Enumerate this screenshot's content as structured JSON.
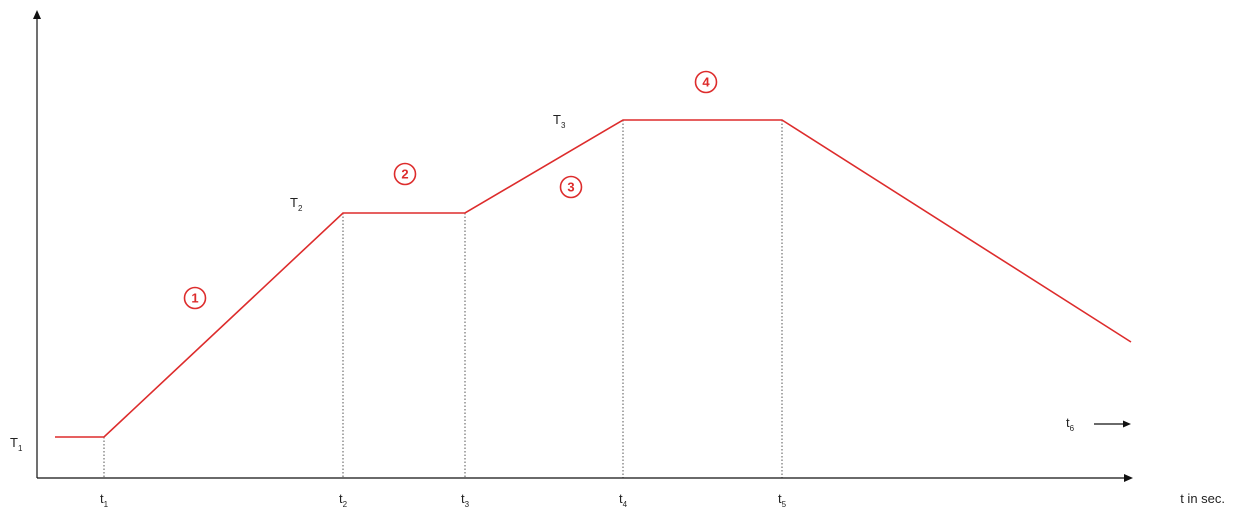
{
  "chart_data": {
    "type": "line",
    "title": "",
    "xlabel": "t in sec.",
    "ylabel": "",
    "grid": false,
    "colors": {
      "profile_line": "#dd2c2c",
      "axis": "#111111",
      "guide": "#555555",
      "label": "#222222"
    },
    "x_ticks": [
      {
        "main": "t",
        "sub": "1",
        "x": 104
      },
      {
        "main": "t",
        "sub": "2",
        "x": 343
      },
      {
        "main": "t",
        "sub": "3",
        "x": 465
      },
      {
        "main": "t",
        "sub": "4",
        "x": 623
      },
      {
        "main": "t",
        "sub": "5",
        "x": 782
      }
    ],
    "t6_label": {
      "main": "t",
      "sub": "6"
    },
    "temperature_labels": [
      {
        "main": "T",
        "sub": "1",
        "y": 437
      },
      {
        "main": "T",
        "sub": "2",
        "y": 213
      },
      {
        "main": "T",
        "sub": "3",
        "y": 120
      }
    ],
    "series": [
      {
        "points": [
          {
            "x": 55,
            "y": 437
          },
          {
            "x": 104,
            "y": 437
          },
          {
            "x": 343,
            "y": 213
          },
          {
            "x": 465,
            "y": 213
          },
          {
            "x": 623,
            "y": 120
          },
          {
            "x": 782,
            "y": 120
          },
          {
            "x": 1131,
            "y": 342
          }
        ]
      }
    ],
    "guides": [
      {
        "x": 104,
        "y": 437
      },
      {
        "x": 343,
        "y": 213
      },
      {
        "x": 465,
        "y": 213
      },
      {
        "x": 623,
        "y": 120
      },
      {
        "x": 782,
        "y": 120
      }
    ],
    "phase_markers": [
      {
        "label": "1",
        "x": 195,
        "y": 298
      },
      {
        "label": "2",
        "x": 405,
        "y": 174
      },
      {
        "label": "3",
        "x": 571,
        "y": 187
      },
      {
        "label": "4",
        "x": 706,
        "y": 82
      }
    ]
  }
}
